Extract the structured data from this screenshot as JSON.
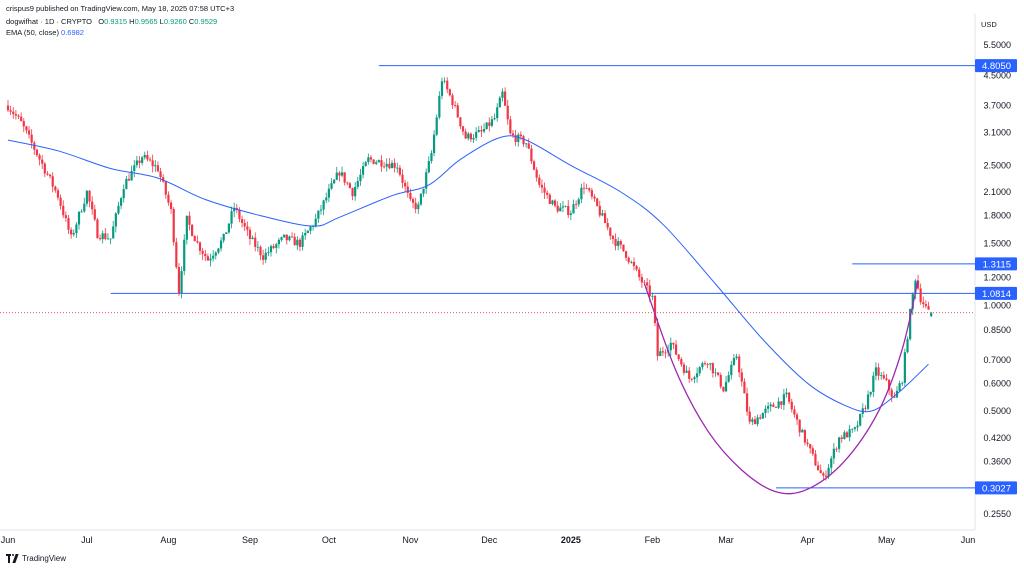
{
  "header": {
    "text": "crispus9 published on TradingView.com, May 18, 2025 07:58 UTC+3"
  },
  "legend": {
    "symbol": "dogwifhat · 1D · CRYPTO",
    "o_label": "O",
    "o_value": "0.9315",
    "h_label": "H",
    "h_value": "0.9565",
    "l_label": "L",
    "l_value": "0.9260",
    "c_label": "C",
    "c_value": "0.9529",
    "ema_label": "EMA (50, close)",
    "ema_value": "0.6982"
  },
  "currency": "USD",
  "footer": {
    "brand": "TradingView"
  },
  "colors": {
    "up": "#089981",
    "down": "#f23645",
    "ema": "#2962ff",
    "hline": "#2962ff",
    "cup": "#9c27b0",
    "badge": "#2962ff"
  },
  "chart_data": {
    "type": "candlestick",
    "y_scale": "log",
    "y_ticks": [
      "5.5000",
      "4.5000",
      "3.7000",
      "3.1000",
      "2.5000",
      "2.1000",
      "1.8000",
      "1.5000",
      "1.2000",
      "1.0000",
      "0.8500",
      "0.7000",
      "0.6000",
      "0.5000",
      "0.4200",
      "0.3600",
      "0.2550"
    ],
    "y_tick_values": [
      5.5,
      4.5,
      3.7,
      3.1,
      2.5,
      2.1,
      1.8,
      1.5,
      1.2,
      1.0,
      0.85,
      0.7,
      0.6,
      0.5,
      0.42,
      0.36,
      0.255
    ],
    "x_ticks": [
      {
        "label": "Jun",
        "date": "2024-06-01"
      },
      {
        "label": "Jul",
        "date": "2024-07-01"
      },
      {
        "label": "Aug",
        "date": "2024-08-01"
      },
      {
        "label": "Sep",
        "date": "2024-09-01"
      },
      {
        "label": "Oct",
        "date": "2024-10-01"
      },
      {
        "label": "Nov",
        "date": "2024-11-01"
      },
      {
        "label": "Dec",
        "date": "2024-12-01"
      },
      {
        "label": "2025",
        "date": "2025-01-01",
        "bold": true
      },
      {
        "label": "Feb",
        "date": "2025-02-01"
      },
      {
        "label": "Mar",
        "date": "2025-03-01"
      },
      {
        "label": "Apr",
        "date": "2025-04-01"
      },
      {
        "label": "May",
        "date": "2025-05-01"
      },
      {
        "label": "Jun",
        "date": "2025-06-01"
      }
    ],
    "levels": [
      {
        "label": "4.8050",
        "value": 4.805,
        "from": "2024-10-20"
      },
      {
        "label": "1.3115",
        "value": 1.3115,
        "from": "2025-04-18"
      },
      {
        "label": "1.0814",
        "value": 1.0814,
        "from": "2024-07-10"
      },
      {
        "label": "0.3027",
        "value": 0.3027,
        "from": "2025-03-20"
      }
    ],
    "last_close": 0.9529,
    "price_path": [
      [
        "2024-06-01",
        3.7
      ],
      [
        "2024-06-06",
        3.3
      ],
      [
        "2024-06-12",
        2.7
      ],
      [
        "2024-06-20",
        2.05
      ],
      [
        "2024-06-25",
        1.55
      ],
      [
        "2024-07-01",
        2.1
      ],
      [
        "2024-07-05",
        1.6
      ],
      [
        "2024-07-10",
        1.55
      ],
      [
        "2024-07-15",
        2.2
      ],
      [
        "2024-07-22",
        2.65
      ],
      [
        "2024-07-28",
        2.45
      ],
      [
        "2024-08-02",
        1.85
      ],
      [
        "2024-08-05",
        1.1
      ],
      [
        "2024-08-08",
        1.75
      ],
      [
        "2024-08-12",
        1.5
      ],
      [
        "2024-08-16",
        1.35
      ],
      [
        "2024-08-22",
        1.55
      ],
      [
        "2024-08-26",
        1.9
      ],
      [
        "2024-09-01",
        1.55
      ],
      [
        "2024-09-06",
        1.38
      ],
      [
        "2024-09-14",
        1.55
      ],
      [
        "2024-09-20",
        1.5
      ],
      [
        "2024-09-26",
        1.75
      ],
      [
        "2024-10-01",
        2.1
      ],
      [
        "2024-10-05",
        2.4
      ],
      [
        "2024-10-10",
        2.1
      ],
      [
        "2024-10-16",
        2.6
      ],
      [
        "2024-10-22",
        2.55
      ],
      [
        "2024-10-27",
        2.5
      ],
      [
        "2024-11-01",
        1.95
      ],
      [
        "2024-11-04",
        1.9
      ],
      [
        "2024-11-09",
        2.7
      ],
      [
        "2024-11-13",
        4.4
      ],
      [
        "2024-11-17",
        3.8
      ],
      [
        "2024-11-22",
        3.0
      ],
      [
        "2024-11-28",
        3.1
      ],
      [
        "2024-12-03",
        3.4
      ],
      [
        "2024-12-06",
        4.0
      ],
      [
        "2024-12-09",
        3.05
      ],
      [
        "2024-12-15",
        2.9
      ],
      [
        "2024-12-20",
        2.2
      ],
      [
        "2024-12-26",
        1.9
      ],
      [
        "2025-01-01",
        1.85
      ],
      [
        "2025-01-06",
        2.2
      ],
      [
        "2025-01-11",
        1.9
      ],
      [
        "2025-01-17",
        1.55
      ],
      [
        "2025-01-22",
        1.4
      ],
      [
        "2025-01-27",
        1.2
      ],
      [
        "2025-02-01",
        1.05
      ],
      [
        "2025-02-03",
        0.72
      ],
      [
        "2025-02-08",
        0.78
      ],
      [
        "2025-02-15",
        0.62
      ],
      [
        "2025-02-22",
        0.7
      ],
      [
        "2025-02-28",
        0.58
      ],
      [
        "2025-03-05",
        0.72
      ],
      [
        "2025-03-10",
        0.46
      ],
      [
        "2025-03-16",
        0.5
      ],
      [
        "2025-03-24",
        0.55
      ],
      [
        "2025-03-30",
        0.43
      ],
      [
        "2025-04-03",
        0.37
      ],
      [
        "2025-04-07",
        0.32
      ],
      [
        "2025-04-13",
        0.42
      ],
      [
        "2025-04-19",
        0.44
      ],
      [
        "2025-04-23",
        0.52
      ],
      [
        "2025-04-27",
        0.65
      ],
      [
        "2025-05-01",
        0.6
      ],
      [
        "2025-05-04",
        0.54
      ],
      [
        "2025-05-07",
        0.62
      ],
      [
        "2025-05-10",
        0.95
      ],
      [
        "2025-05-12",
        1.2
      ],
      [
        "2025-05-14",
        1.05
      ],
      [
        "2025-05-17",
        0.95
      ]
    ],
    "ema_path": [
      [
        "2024-06-01",
        2.95
      ],
      [
        "2024-06-20",
        2.75
      ],
      [
        "2024-07-10",
        2.45
      ],
      [
        "2024-07-28",
        2.3
      ],
      [
        "2024-08-15",
        2.0
      ],
      [
        "2024-09-05",
        1.8
      ],
      [
        "2024-09-25",
        1.68
      ],
      [
        "2024-10-05",
        1.78
      ],
      [
        "2024-10-25",
        2.05
      ],
      [
        "2024-11-08",
        2.2
      ],
      [
        "2024-11-20",
        2.6
      ],
      [
        "2024-12-05",
        3.0
      ],
      [
        "2024-12-15",
        2.95
      ],
      [
        "2025-01-01",
        2.5
      ],
      [
        "2025-01-20",
        2.1
      ],
      [
        "2025-02-05",
        1.7
      ],
      [
        "2025-02-25",
        1.15
      ],
      [
        "2025-03-15",
        0.8
      ],
      [
        "2025-04-01",
        0.6
      ],
      [
        "2025-04-15",
        0.52
      ],
      [
        "2025-04-25",
        0.5
      ],
      [
        "2025-05-05",
        0.56
      ],
      [
        "2025-05-17",
        0.68
      ]
    ],
    "cup_path": [
      [
        "2025-01-29",
        1.15
      ],
      [
        "2025-02-10",
        0.65
      ],
      [
        "2025-02-22",
        0.44
      ],
      [
        "2025-03-07",
        0.34
      ],
      [
        "2025-03-20",
        0.295
      ],
      [
        "2025-04-01",
        0.3
      ],
      [
        "2025-04-15",
        0.36
      ],
      [
        "2025-04-28",
        0.5
      ],
      [
        "2025-05-07",
        0.75
      ],
      [
        "2025-05-13",
        1.18
      ]
    ]
  }
}
